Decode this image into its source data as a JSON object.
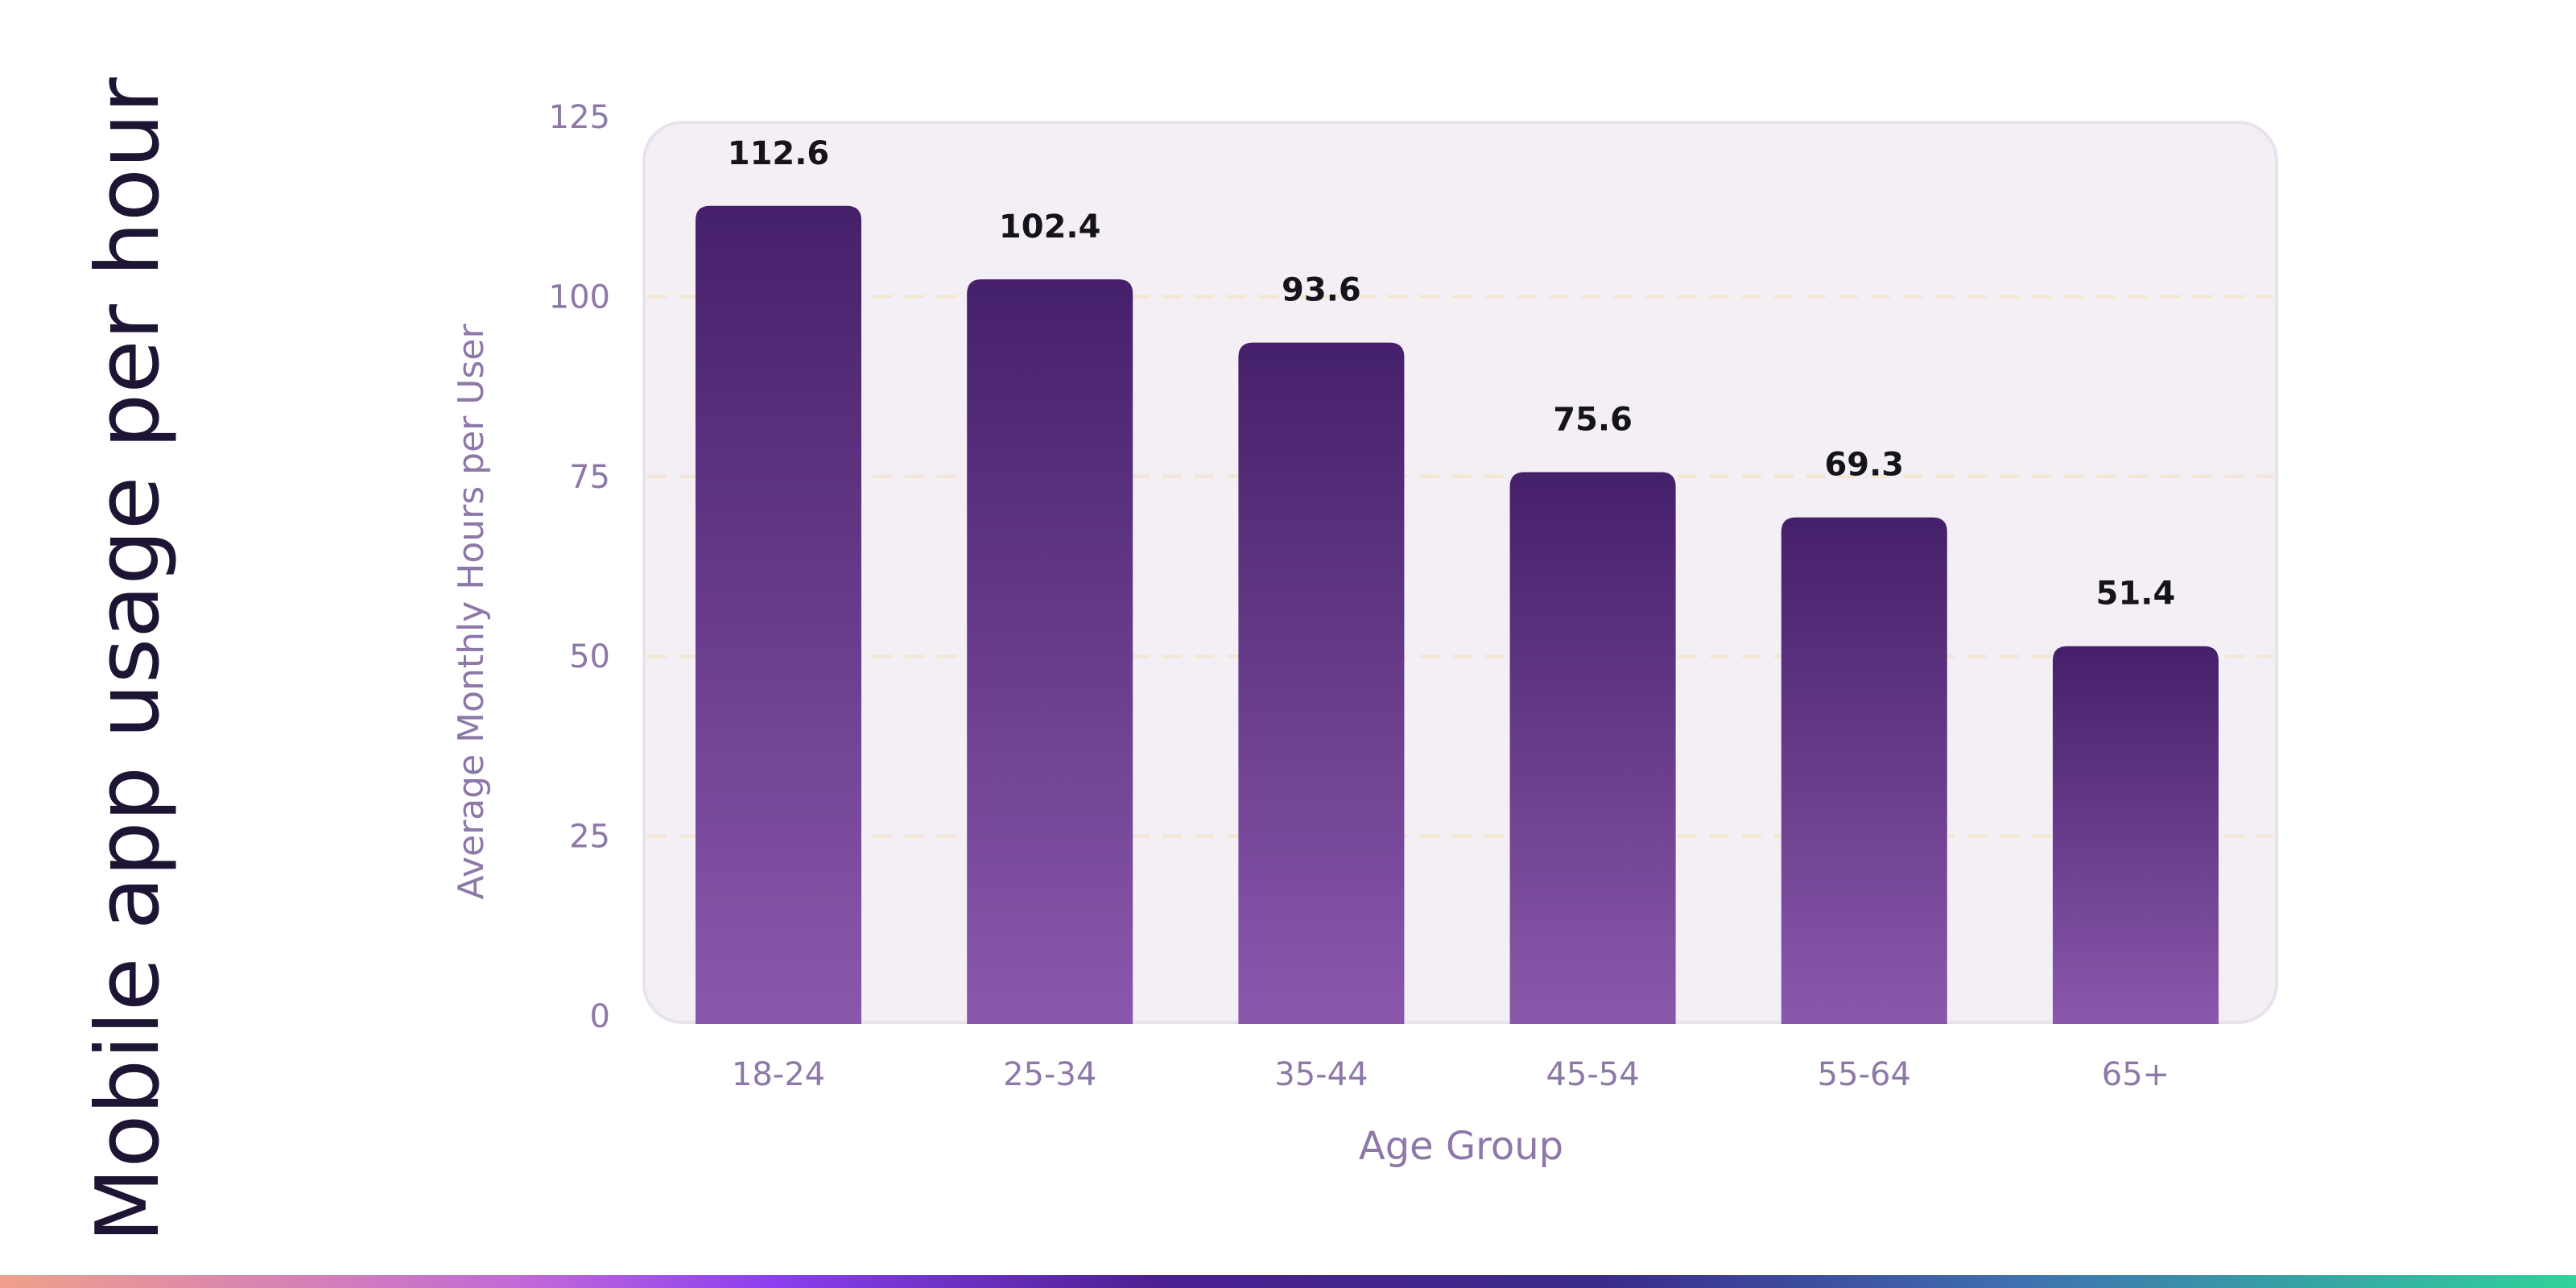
{
  "chart_data": {
    "type": "bar",
    "title": "Mobile app usage per hour",
    "xlabel": "Age Group",
    "ylabel": "Average Monthly Hours per User",
    "categories": [
      "18-24",
      "25-34",
      "35-44",
      "45-54",
      "55-64",
      "65+"
    ],
    "values": [
      112.6,
      102.4,
      93.6,
      75.6,
      69.3,
      51.4
    ],
    "value_labels": [
      "112.6",
      "102.4",
      "93.6",
      "75.6",
      "69.3",
      "51.4"
    ],
    "ylim": [
      0,
      125
    ],
    "yticks": [
      0,
      25,
      50,
      75,
      100,
      125
    ],
    "ytick_labels": [
      "0",
      "25",
      "50",
      "75",
      "100",
      "125"
    ],
    "grid": true,
    "legend": "none",
    "colors": {
      "bar_top": "#45206a",
      "bar_bottom": "#8a58ab",
      "plot_bg": "#f4eff5",
      "grid": "#f3e6d2",
      "axis_text": "#8d78a8",
      "title_text": "#1e1433",
      "value_text": "#15131c"
    }
  }
}
